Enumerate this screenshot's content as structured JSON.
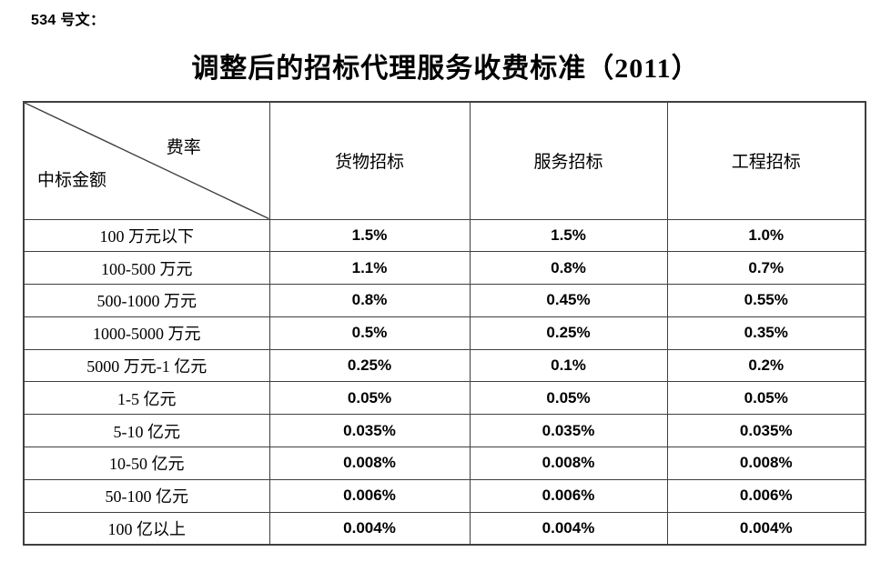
{
  "page": {
    "doc_number": "534 号文：",
    "title": "调整后的招标代理服务收费标准（2011）"
  },
  "table": {
    "corner": {
      "top_right": "费率",
      "bottom_left": "中标金额"
    },
    "columns": [
      "货物招标",
      "服务招标",
      "工程招标"
    ],
    "rows": [
      {
        "label": "100 万元以下",
        "values": [
          "1.5%",
          "1.5%",
          "1.0%"
        ]
      },
      {
        "label": "100-500 万元",
        "values": [
          "1.1%",
          "0.8%",
          "0.7%"
        ]
      },
      {
        "label": "500-1000 万元",
        "values": [
          "0.8%",
          "0.45%",
          "0.55%"
        ]
      },
      {
        "label": "1000-5000 万元",
        "values": [
          "0.5%",
          "0.25%",
          "0.35%"
        ]
      },
      {
        "label": "5000 万元-1 亿元",
        "values": [
          "0.25%",
          "0.1%",
          "0.2%"
        ]
      },
      {
        "label": "1-5 亿元",
        "values": [
          "0.05%",
          "0.05%",
          "0.05%"
        ]
      },
      {
        "label": "5-10 亿元",
        "values": [
          "0.035%",
          "0.035%",
          "0.035%"
        ]
      },
      {
        "label": "10-50 亿元",
        "values": [
          "0.008%",
          "0.008%",
          "0.008%"
        ]
      },
      {
        "label": "50-100 亿元",
        "values": [
          "0.006%",
          "0.006%",
          "0.006%"
        ]
      },
      {
        "label": "100 亿以上",
        "values": [
          "0.004%",
          "0.004%",
          "0.004%"
        ]
      }
    ]
  },
  "colors": {
    "text": "#000000",
    "border": "#3f3f3f",
    "background": "#ffffff"
  }
}
